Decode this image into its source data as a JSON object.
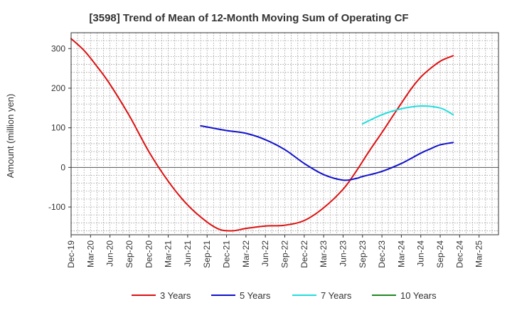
{
  "chart_data": {
    "type": "line",
    "title": "[3598]  Trend of Mean of 12-Month Moving Sum of Operating CF",
    "ylabel": "Amount (million yen)",
    "xlabel": "",
    "ylim": [
      -170,
      340
    ],
    "yticks": [
      300,
      200,
      100,
      0,
      -100
    ],
    "categories": [
      "Dec-19",
      "Mar-20",
      "Jun-20",
      "Sep-20",
      "Dec-20",
      "Mar-21",
      "Jun-21",
      "Sep-21",
      "Dec-21",
      "Mar-22",
      "Jun-22",
      "Sep-22",
      "Dec-22",
      "Mar-23",
      "Jun-23",
      "Sep-23",
      "Dec-23",
      "Mar-24",
      "Jun-24",
      "Sep-24",
      "Dec-24",
      "Mar-25"
    ],
    "grid": true,
    "legend_position": "bottom",
    "series": [
      {
        "name": "3 Years",
        "color": "#dd1111",
        "points": [
          [
            0,
            325
          ],
          [
            0.67,
            295
          ],
          [
            1.33,
            255
          ],
          [
            2,
            210
          ],
          [
            3,
            130
          ],
          [
            4,
            40
          ],
          [
            5,
            -35
          ],
          [
            6,
            -95
          ],
          [
            7,
            -138
          ],
          [
            7.67,
            -157
          ],
          [
            8.33,
            -160
          ],
          [
            9,
            -154
          ],
          [
            10,
            -148
          ],
          [
            11,
            -146
          ],
          [
            12,
            -134
          ],
          [
            13,
            -102
          ],
          [
            14,
            -55
          ],
          [
            14.67,
            -10
          ],
          [
            15.33,
            40
          ],
          [
            16,
            88
          ],
          [
            16.67,
            138
          ],
          [
            17,
            162
          ],
          [
            17.5,
            198
          ],
          [
            18,
            228
          ],
          [
            18.5,
            250
          ],
          [
            19,
            268
          ],
          [
            19.3,
            275
          ],
          [
            19.67,
            282
          ]
        ]
      },
      {
        "name": "5 Years",
        "color": "#1111cc",
        "points": [
          [
            6.67,
            105
          ],
          [
            7,
            102
          ],
          [
            8,
            93
          ],
          [
            9,
            86
          ],
          [
            10,
            70
          ],
          [
            11,
            45
          ],
          [
            12,
            10
          ],
          [
            13,
            -18
          ],
          [
            14,
            -32
          ],
          [
            14.67,
            -28
          ],
          [
            15,
            -23
          ],
          [
            16,
            -10
          ],
          [
            17,
            10
          ],
          [
            18,
            36
          ],
          [
            18.5,
            47
          ],
          [
            19,
            57
          ],
          [
            19.67,
            63
          ]
        ]
      },
      {
        "name": "7 Years",
        "color": "#22dddd",
        "points": [
          [
            15,
            110
          ],
          [
            16,
            133
          ],
          [
            17,
            148
          ],
          [
            18,
            155
          ],
          [
            19,
            150
          ],
          [
            19.67,
            133
          ]
        ]
      },
      {
        "name": "10 Years",
        "color": "#228822",
        "points": []
      }
    ]
  }
}
